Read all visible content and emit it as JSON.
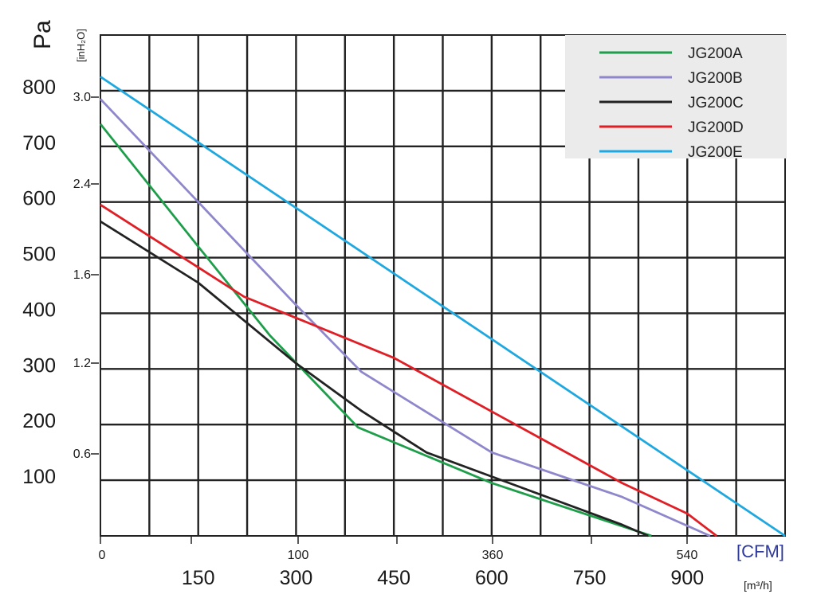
{
  "chart_data": {
    "type": "line",
    "y_label_pa": "Pa",
    "y_label_inh2o": "[inH₂O]",
    "x_unit_cfm": "[CFM]",
    "x_unit_m3h": "[m³/h]",
    "y_ticks_pa": [
      "100",
      "200",
      "300",
      "400",
      "500",
      "600",
      "700",
      "800"
    ],
    "y_ticks_inh2o": [
      "0.6",
      "1.2",
      "1.6",
      "2.4",
      "3.0"
    ],
    "x_ticks_cfm": [
      "0",
      "100",
      "360",
      "540"
    ],
    "x_ticks_m3h": [
      "150",
      "300",
      "450",
      "600",
      "750",
      "900"
    ],
    "x_range_m3h": [
      0,
      1050
    ],
    "y_range_pa": [
      0,
      900
    ],
    "grid": true,
    "legend_position": "top-right",
    "series": [
      {
        "name": "JG200A",
        "color": "#1e9e4a",
        "points": [
          [
            0,
            740
          ],
          [
            150,
            520
          ],
          [
            260,
            360
          ],
          [
            395,
            195
          ],
          [
            600,
            95
          ],
          [
            845,
            0
          ]
        ]
      },
      {
        "name": "JG200B",
        "color": "#8f87cc",
        "points": [
          [
            0,
            785
          ],
          [
            150,
            600
          ],
          [
            300,
            415
          ],
          [
            400,
            295
          ],
          [
            600,
            150
          ],
          [
            800,
            70
          ],
          [
            935,
            0
          ]
        ]
      },
      {
        "name": "JG200C",
        "color": "#222222",
        "points": [
          [
            0,
            565
          ],
          [
            150,
            455
          ],
          [
            300,
            310
          ],
          [
            400,
            225
          ],
          [
            500,
            150
          ],
          [
            800,
            20
          ],
          [
            840,
            0
          ]
        ]
      },
      {
        "name": "JG200D",
        "color": "#e01e25",
        "points": [
          [
            0,
            595
          ],
          [
            220,
            430
          ],
          [
            450,
            320
          ],
          [
            800,
            95
          ],
          [
            900,
            40
          ],
          [
            945,
            0
          ]
        ]
      },
      {
        "name": "JG200E",
        "color": "#1fa8e0",
        "points": [
          [
            0,
            825
          ],
          [
            1050,
            0
          ]
        ]
      }
    ]
  }
}
